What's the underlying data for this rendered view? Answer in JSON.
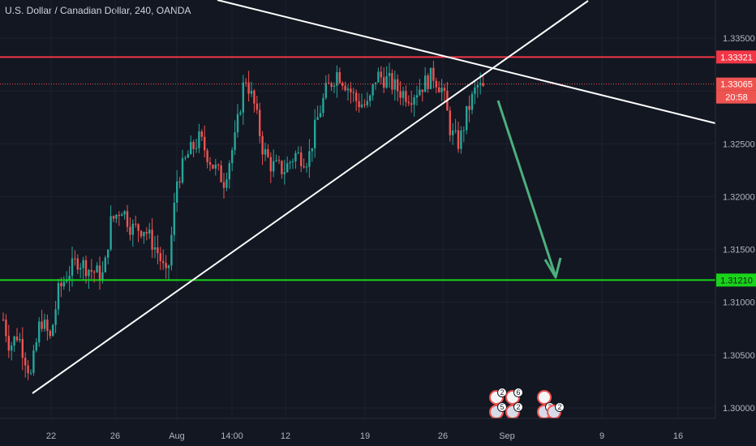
{
  "header": {
    "title": "U.S. Dollar / Canadian Dollar, 240, OANDA"
  },
  "colors": {
    "background": "#131722",
    "grid": "#1e2230",
    "up": "#26a69a",
    "down": "#ef5350",
    "resistance": "#f23645",
    "support": "#18d418",
    "trendline": "#ffffff",
    "arrow": "#4caf7d",
    "current_price": "#ef5350"
  },
  "chart_data": {
    "type": "candlestick",
    "symbol": "USDCAD",
    "timeframe": "240",
    "y_ticks": [
      "1.33500",
      "1.33000",
      "1.32500",
      "1.32000",
      "1.31500",
      "1.31000",
      "1.30500",
      "1.30000"
    ],
    "y_tick_values": [
      1.335,
      1.33,
      1.325,
      1.32,
      1.315,
      1.31,
      1.305,
      1.3
    ],
    "x_ticks": [
      "22",
      "26",
      "Aug",
      "14:00",
      "12",
      "19",
      "26",
      "Sep",
      "9",
      "16"
    ],
    "ylim": [
      1.2995,
      1.3375
    ],
    "grid": true,
    "price_tags": {
      "resistance": "1.33321",
      "current": "1.33065",
      "countdown": "20:58",
      "support": "1.31210"
    },
    "levels": {
      "resistance": 1.33321,
      "support": 1.3121,
      "current": 1.33065
    },
    "events": [
      {
        "label": "2",
        "flag": "CA"
      },
      {
        "label": "6",
        "flag": "CA"
      },
      {
        "label": "",
        "flag": "CA"
      },
      {
        "label": "5",
        "flag": "US"
      },
      {
        "label": "2",
        "flag": "US"
      },
      {
        "label": "2",
        "flag": "US"
      },
      {
        "label": "2",
        "flag": "US"
      }
    ]
  }
}
